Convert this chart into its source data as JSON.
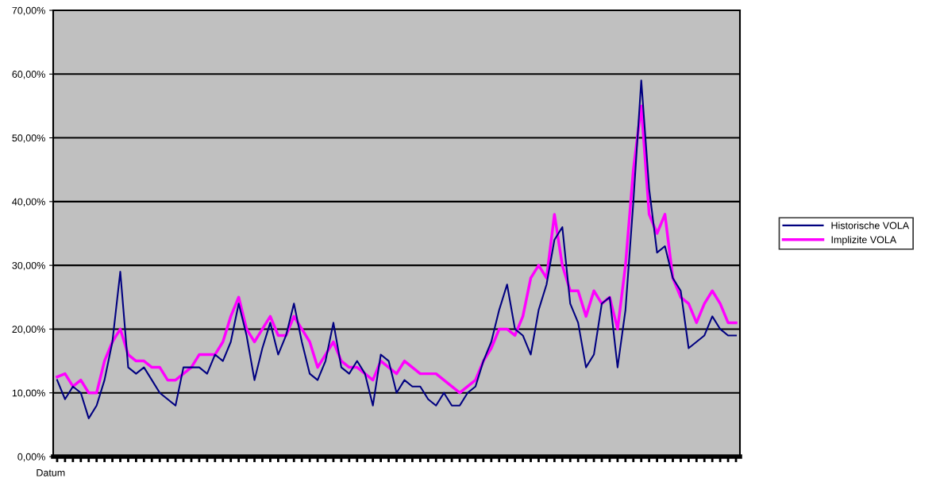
{
  "chart_data": {
    "type": "line",
    "xlabel": "Datum",
    "categories": [
      null,
      null,
      null,
      null,
      null,
      null,
      null,
      null,
      null,
      null,
      null,
      null,
      null,
      null,
      null,
      null,
      null,
      null,
      null,
      null,
      null,
      null,
      null,
      null,
      null,
      null,
      null,
      null,
      null,
      null,
      null,
      null,
      null,
      null,
      null,
      null,
      null,
      null,
      null,
      null,
      null,
      null,
      null,
      null,
      null,
      null,
      null,
      null,
      null,
      null,
      null,
      null,
      null,
      null,
      null,
      null,
      null,
      null,
      null,
      null,
      null,
      null,
      null,
      null,
      null,
      null,
      null,
      null,
      null,
      null,
      null,
      null,
      null,
      null,
      null,
      null,
      null,
      null,
      null,
      null,
      null,
      null,
      null,
      null,
      null,
      null,
      null
    ],
    "series": [
      {
        "name": "Historische VOLA",
        "color": "#000080",
        "values": [
          12,
          9,
          11,
          10,
          6,
          8,
          12,
          18,
          29,
          14,
          13,
          14,
          12,
          10,
          9,
          8,
          14,
          14,
          14,
          13,
          16,
          15,
          18,
          24,
          19,
          12,
          17,
          21,
          16,
          19,
          24,
          18,
          13,
          12,
          15,
          21,
          14,
          13,
          15,
          13,
          8,
          16,
          15,
          10,
          12,
          11,
          11,
          9,
          8,
          10,
          8,
          8,
          10,
          11,
          15,
          18,
          23,
          27,
          20,
          19,
          16,
          23,
          27,
          34,
          36,
          24,
          21,
          14,
          16,
          24,
          25,
          14,
          23,
          40,
          59,
          42,
          32,
          33,
          28,
          26,
          17,
          18,
          19,
          22,
          20,
          19,
          19
        ]
      },
      {
        "name": "Implizite VOLA",
        "color": "#ff00ff",
        "values": [
          12.5,
          13,
          11,
          12,
          10,
          10,
          15,
          18,
          20,
          16,
          15,
          15,
          14,
          14,
          12,
          12,
          13,
          14,
          16,
          16,
          16,
          18,
          22,
          25,
          20,
          18,
          20,
          22,
          19,
          19,
          22,
          20,
          18,
          14,
          16,
          18,
          15,
          14,
          14,
          13,
          12,
          15,
          14,
          13,
          15,
          14,
          13,
          13,
          13,
          12,
          11,
          10,
          11,
          12,
          15,
          17,
          20,
          20,
          19,
          22,
          28,
          30,
          28,
          38,
          30,
          26,
          26,
          22,
          26,
          24,
          25,
          20,
          30,
          45,
          55,
          38,
          35,
          38,
          28,
          25,
          24,
          21,
          24,
          26,
          24,
          21,
          21
        ]
      }
    ],
    "ylim": [
      0,
      70
    ],
    "yticks": [
      {
        "value": 0,
        "label": "0,00%"
      },
      {
        "value": 10,
        "label": "10,00%"
      },
      {
        "value": 20,
        "label": "20,00%"
      },
      {
        "value": 30,
        "label": "30,00%"
      },
      {
        "value": 40,
        "label": "40,00%"
      },
      {
        "value": 50,
        "label": "50,00%"
      },
      {
        "value": 60,
        "label": "60,00%"
      },
      {
        "value": 70,
        "label": "70,00%"
      }
    ],
    "grid": "y",
    "legend": "right",
    "tick_labels": "y"
  }
}
